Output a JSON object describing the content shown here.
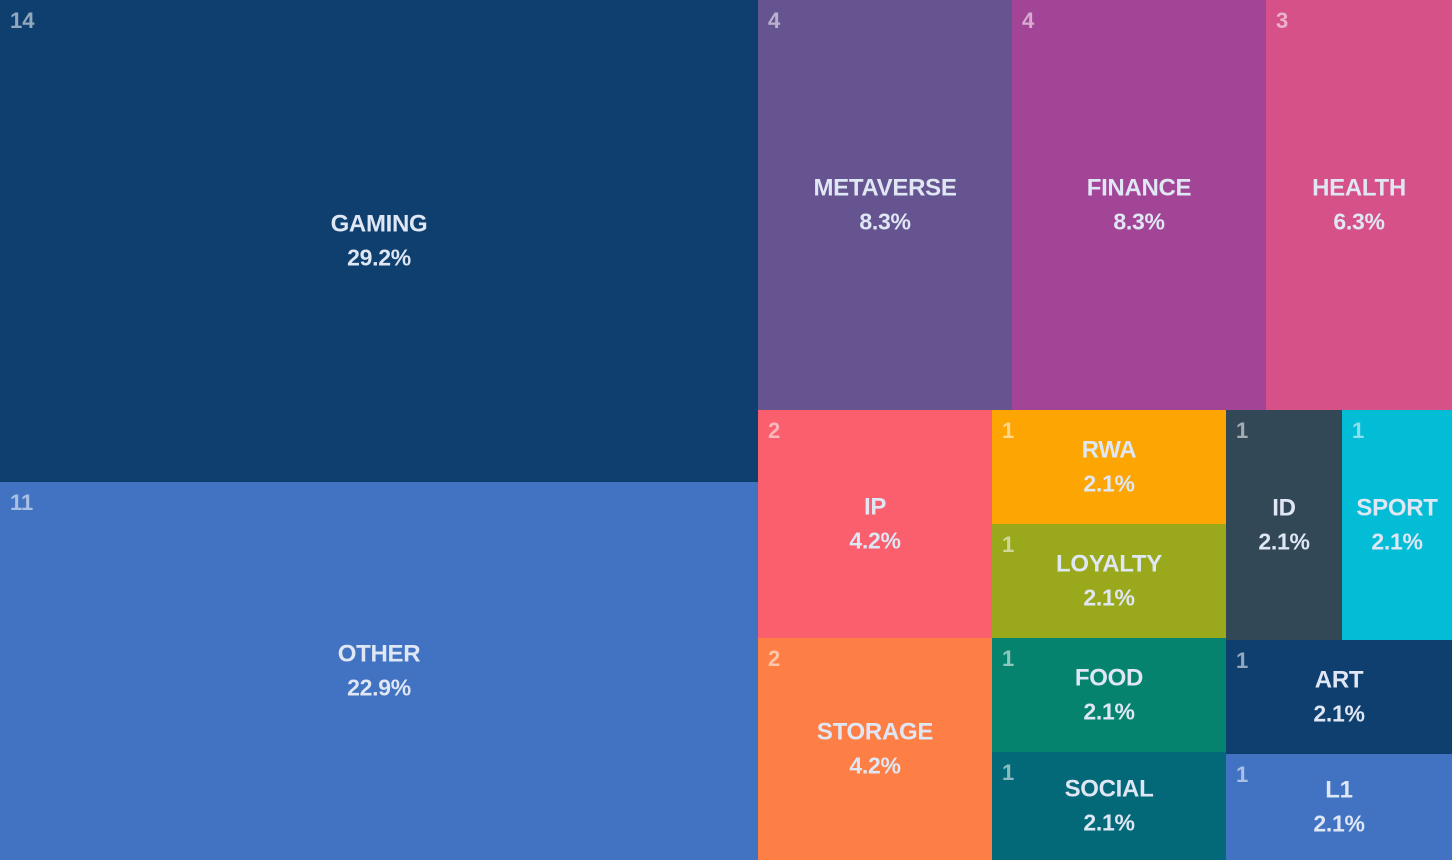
{
  "chart_data": {
    "type": "treemap",
    "items": [
      {
        "label": "GAMING",
        "count": 14,
        "percent": "29.2%",
        "color": "#0f3f6e"
      },
      {
        "label": "OTHER",
        "count": 11,
        "percent": "22.9%",
        "color": "#4272c2"
      },
      {
        "label": "METAVERSE",
        "count": 4,
        "percent": "8.3%",
        "color": "#665491"
      },
      {
        "label": "FINANCE",
        "count": 4,
        "percent": "8.3%",
        "color": "#a24596"
      },
      {
        "label": "HEALTH",
        "count": 3,
        "percent": "6.3%",
        "color": "#d65187"
      },
      {
        "label": "IP",
        "count": 2,
        "percent": "4.2%",
        "color": "#f95f6c"
      },
      {
        "label": "STORAGE",
        "count": 2,
        "percent": "4.2%",
        "color": "#fe7f45"
      },
      {
        "label": "RWA",
        "count": 1,
        "percent": "2.1%",
        "color": "#fda503"
      },
      {
        "label": "LOYALTY",
        "count": 1,
        "percent": "2.1%",
        "color": "#9aa81b"
      },
      {
        "label": "ID",
        "count": 1,
        "percent": "2.1%",
        "color": "#334857"
      },
      {
        "label": "SPORT",
        "count": 1,
        "percent": "2.1%",
        "color": "#03bcd6"
      },
      {
        "label": "FOOD",
        "count": 1,
        "percent": "2.1%",
        "color": "#06836e"
      },
      {
        "label": "SOCIAL",
        "count": 1,
        "percent": "2.1%",
        "color": "#036979"
      },
      {
        "label": "ART",
        "count": 1,
        "percent": "2.1%",
        "color": "#0f3f6e"
      },
      {
        "label": "L1",
        "count": 1,
        "percent": "2.1%",
        "color": "#4272c2"
      }
    ]
  }
}
